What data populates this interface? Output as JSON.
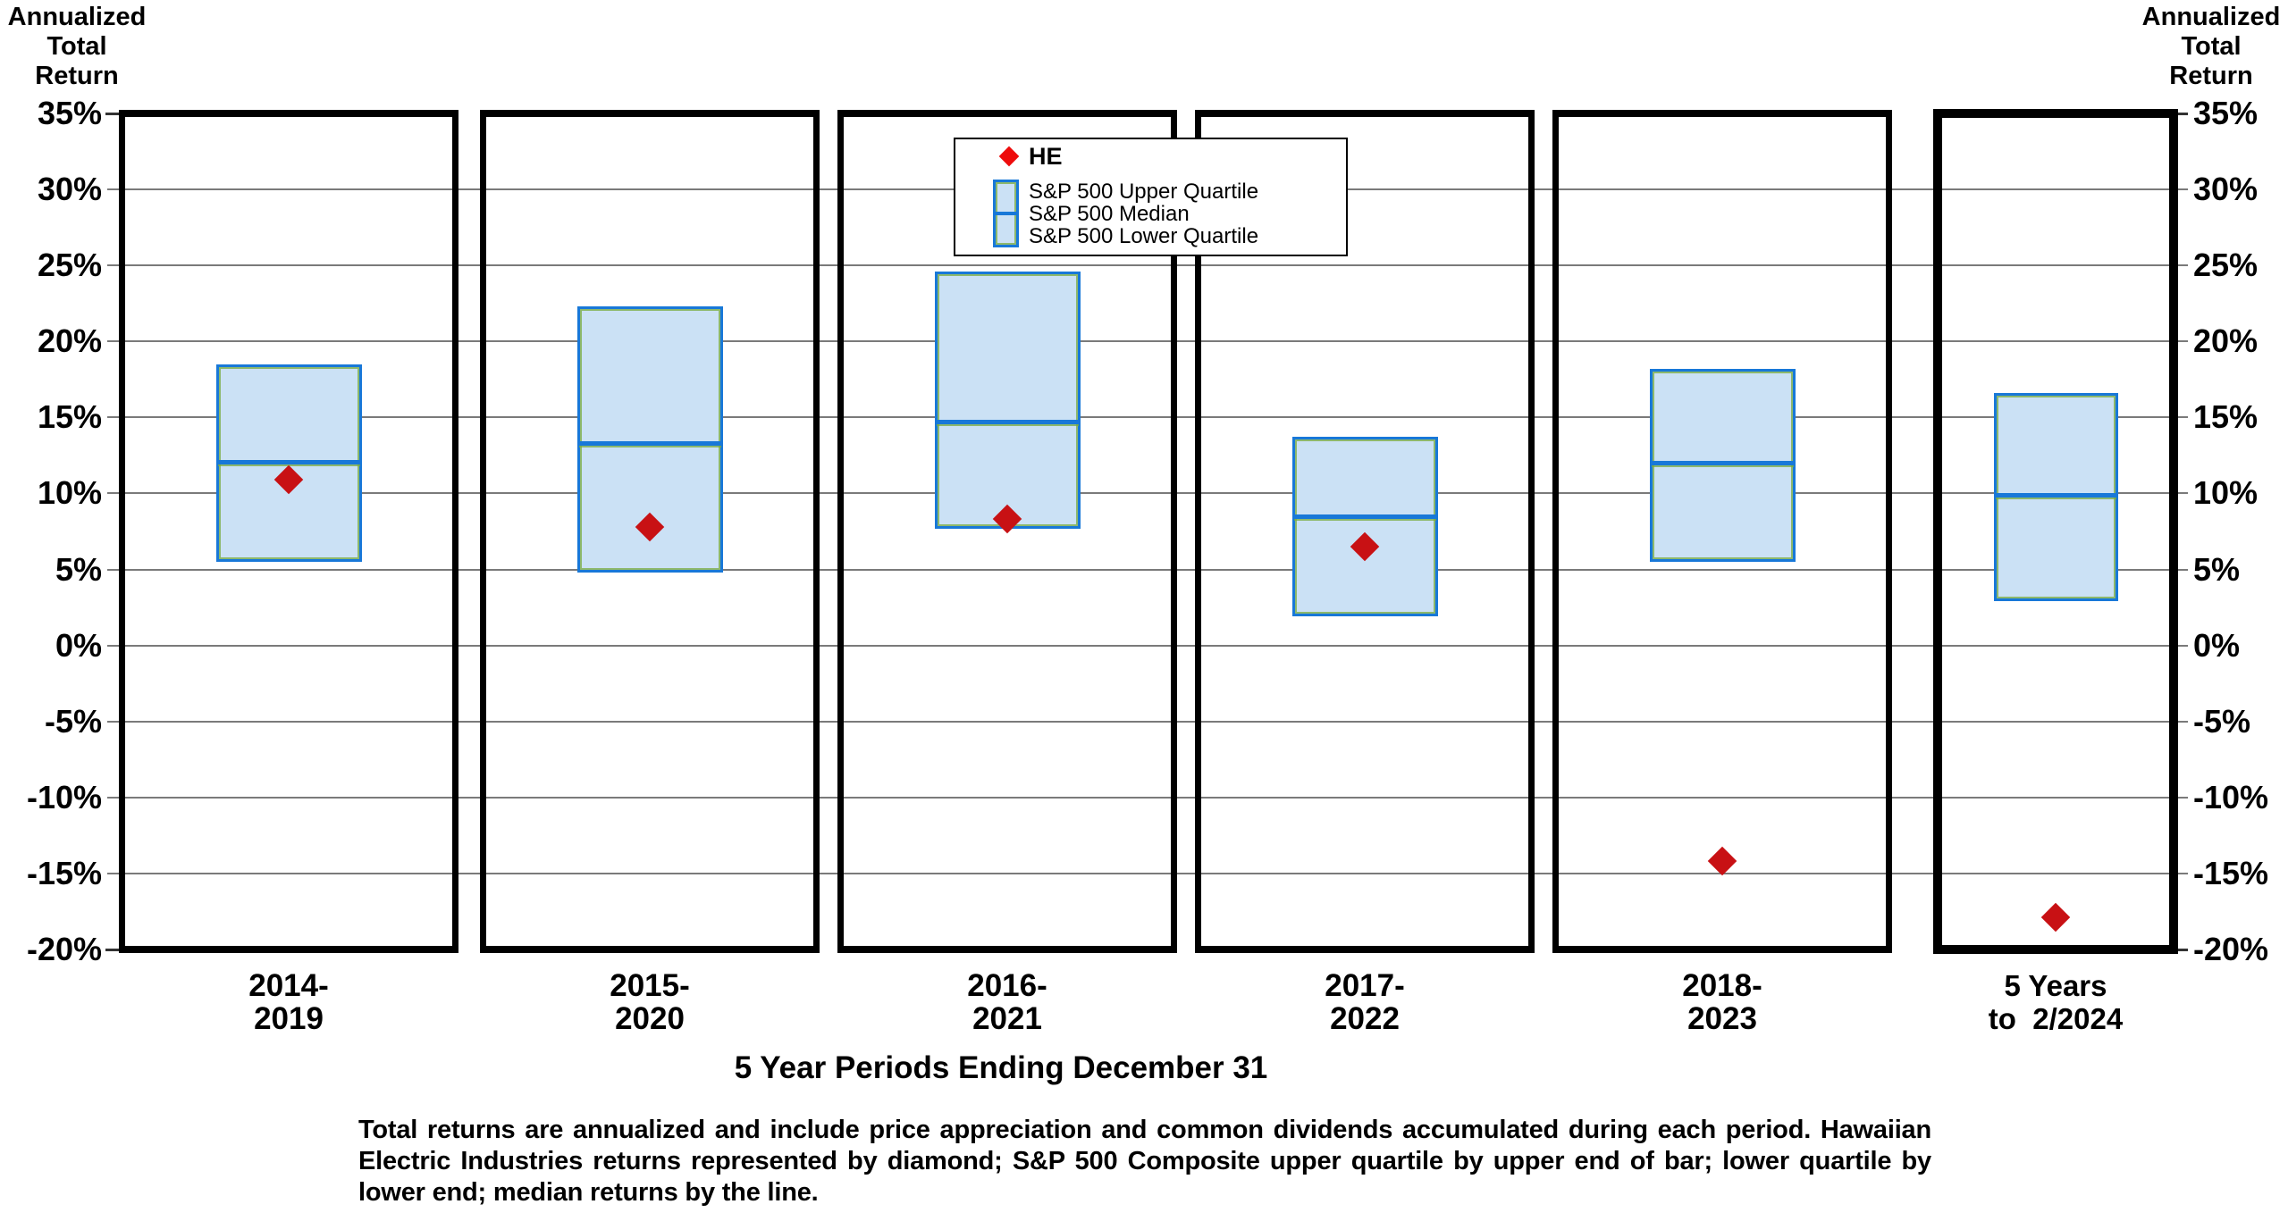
{
  "header_left": {
    "lines": [
      "Annualized",
      "Total",
      "Return"
    ]
  },
  "header_right": {
    "lines": [
      "Annualized",
      "Total",
      "Return"
    ]
  },
  "y_axis": {
    "tick_labels": [
      "35%",
      "30%",
      "25%",
      "20%",
      "15%",
      "10%",
      "5%",
      "0%",
      "-5%",
      "-10%",
      "-15%",
      "-20%"
    ],
    "tick_values": [
      35,
      30,
      25,
      20,
      15,
      10,
      5,
      0,
      -5,
      -10,
      -15,
      -20
    ]
  },
  "x_axis": {
    "title": "5 Year Periods Ending December 31"
  },
  "legend": {
    "he_label": "HE",
    "series": [
      "S&P 500 Upper Quartile",
      "S&P 500 Median",
      "S&P 500 Lower Quartile"
    ]
  },
  "footnote": "Total returns are annualized and include price appreciation and common dividends accumulated during each period. Hawaiian Electric Industries returns represented by diamond; S&P 500 Composite upper quartile by upper end of bar; lower quartile by lower end; median returns by the line.",
  "colors": {
    "box_fill": "#cbe1f5",
    "box_border": "#1878d8",
    "median_line": "#1878d8",
    "he_diamond": "#c81114",
    "legend_diamond": "#ee0c0c",
    "gridline": "#7a7a7a",
    "frame": "#000000"
  },
  "chart_data": {
    "type": "box",
    "subtype": "quartile-range-bars-with-point-marker",
    "y_label": "Annualized Total Return",
    "x_label": "5 Year Periods Ending December 31",
    "ylim": [
      -20,
      35
    ],
    "y_ticks_pct": [
      35,
      30,
      25,
      20,
      15,
      10,
      5,
      0,
      -5,
      -10,
      -15,
      -20
    ],
    "grid": "horizontal",
    "legend_position": "top-center",
    "series_names": [
      "HE",
      "S&P 500 Upper Quartile",
      "S&P 500 Median",
      "S&P 500 Lower Quartile"
    ],
    "periods": [
      {
        "label_line1": "2014-",
        "label_line2": "2019",
        "sp500_upper_quartile": 18.5,
        "sp500_median": 12.1,
        "sp500_lower_quartile": 5.5,
        "he": 10.9,
        "bold_frame": false
      },
      {
        "label_line1": "2015-",
        "label_line2": "2020",
        "sp500_upper_quartile": 22.3,
        "sp500_median": 13.3,
        "sp500_lower_quartile": 4.8,
        "he": 7.8,
        "bold_frame": false
      },
      {
        "label_line1": "2016-",
        "label_line2": "2021",
        "sp500_upper_quartile": 24.6,
        "sp500_median": 14.7,
        "sp500_lower_quartile": 7.7,
        "he": 8.3,
        "bold_frame": false
      },
      {
        "label_line1": "2017-",
        "label_line2": "2022",
        "sp500_upper_quartile": 13.7,
        "sp500_median": 8.5,
        "sp500_lower_quartile": 1.9,
        "he": 6.5,
        "bold_frame": false
      },
      {
        "label_line1": "2018-",
        "label_line2": "2023",
        "sp500_upper_quartile": 18.2,
        "sp500_median": 12.0,
        "sp500_lower_quartile": 5.5,
        "he": -14.2,
        "bold_frame": false
      },
      {
        "label_line1": "5 Years",
        "label_line2": "to  2/2024",
        "sp500_upper_quartile": 16.6,
        "sp500_median": 9.9,
        "sp500_lower_quartile": 2.9,
        "he": -17.9,
        "bold_frame": true
      }
    ]
  }
}
